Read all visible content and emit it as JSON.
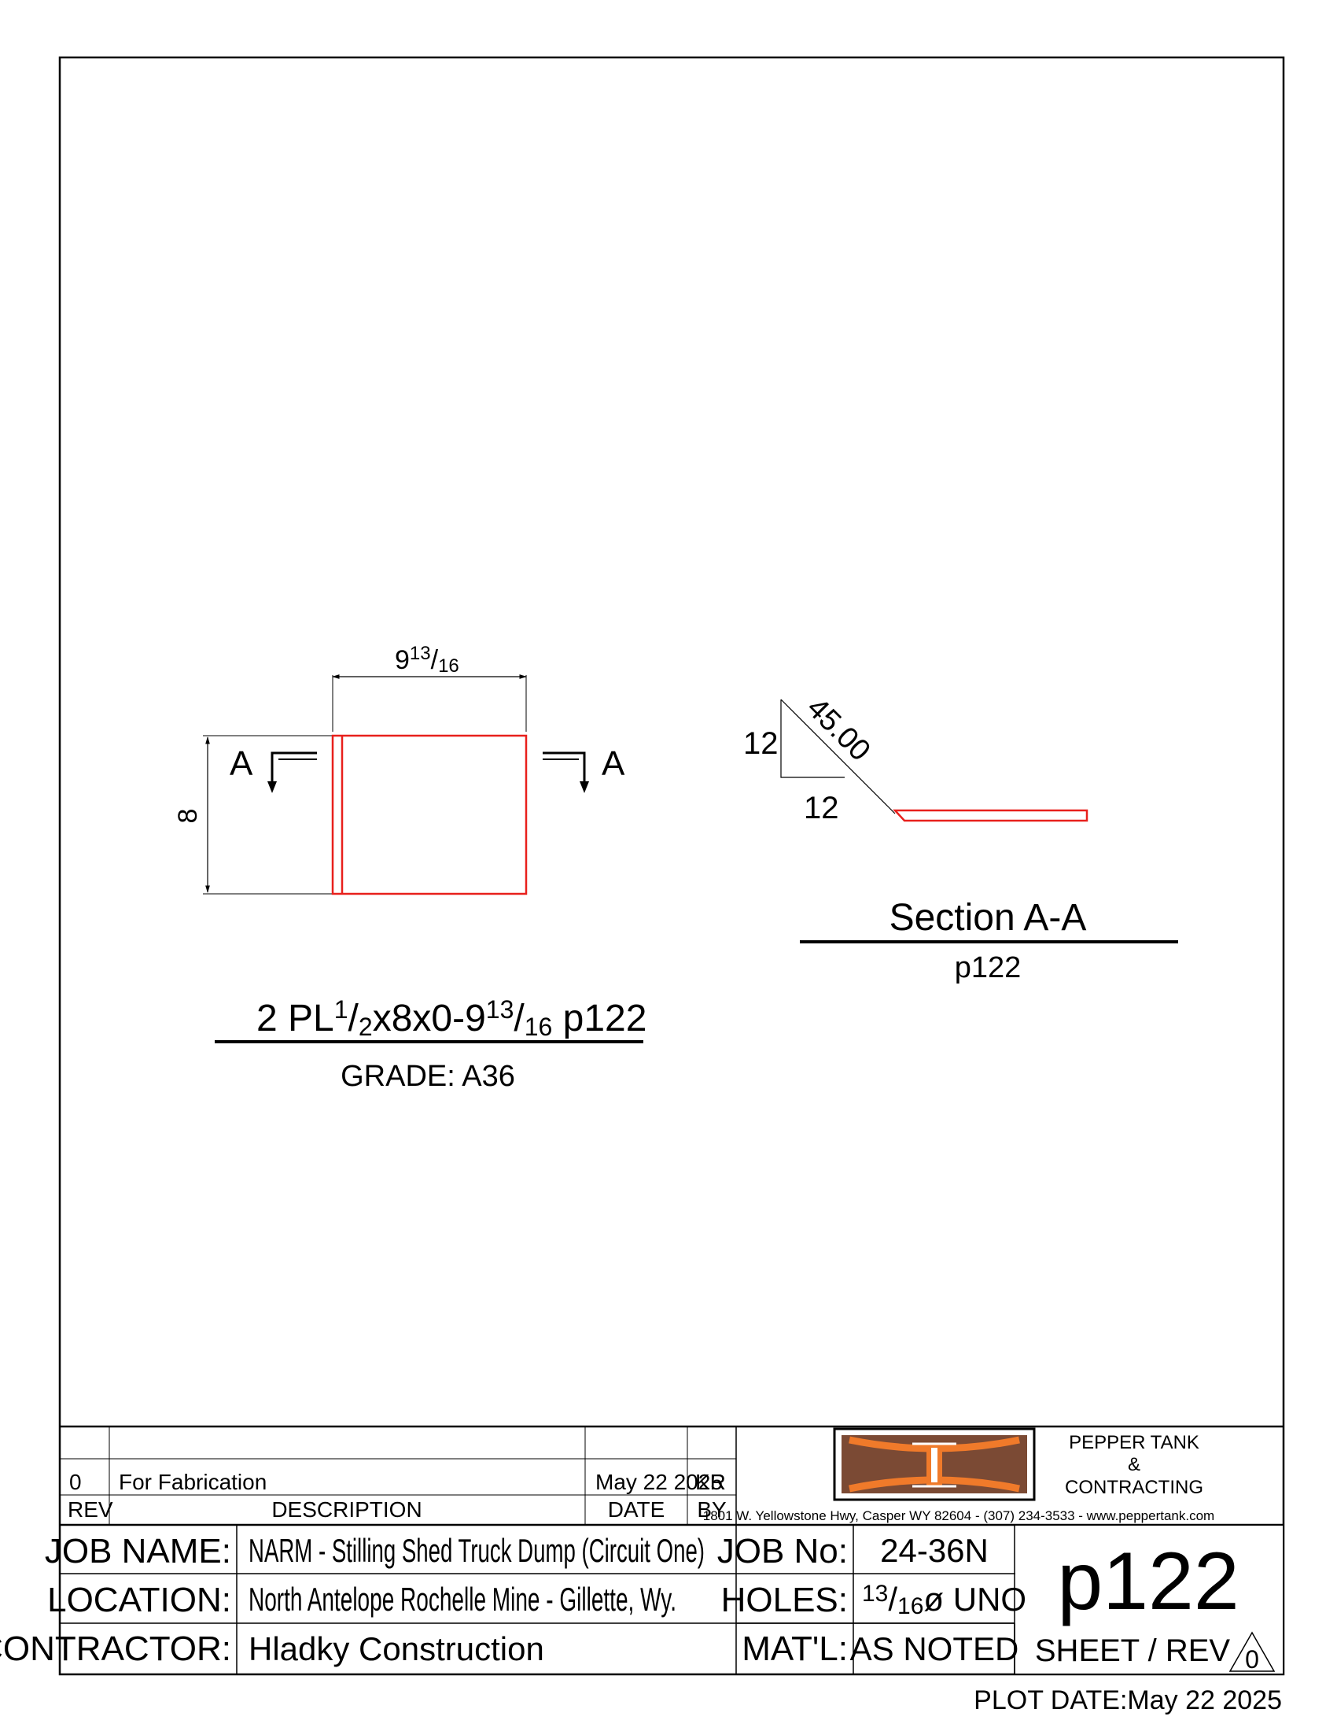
{
  "drawing": {
    "plate_width_dim": {
      "whole": "9",
      "num": "13",
      "den": "16"
    },
    "plate_height_dim": "8",
    "section_mark_left": "A",
    "section_mark_right": "A",
    "piece_title": {
      "pre": "2 PL",
      "t_num": "1",
      "t_den": "2",
      "mid": "x8x0-9",
      "l_num": "13",
      "l_den": "16",
      "post": " p122"
    },
    "grade": "GRADE: A36",
    "bevel_rise": "12",
    "bevel_run": "12",
    "bevel_angle": "45.00",
    "section_title": "Section A-A",
    "section_ref": "p122"
  },
  "title_block": {
    "rev_row": {
      "rev": "0",
      "description": "For Fabrication",
      "date": "May 22 2025",
      "by": "KR"
    },
    "headers": {
      "rev": "REV",
      "description": "DESCRIPTION",
      "date": "DATE",
      "by": "BY"
    },
    "company": {
      "line1": "PEPPER TANK",
      "line2": "&",
      "line3": "CONTRACTING",
      "address": "1801 W. Yellowstone Hwy, Casper WY 82604  -  (307) 234-3533  -  www.peppertank.com"
    },
    "job_name_label": "JOB NAME:",
    "job_name": "NARM - Stilling Shed Truck Dump (Circuit One)",
    "location_label": "LOCATION:",
    "location": "North Antelope Rochelle Mine - Gillette, Wy.",
    "contractor_label": "CONTRACTOR:",
    "contractor": "Hladky Construction",
    "job_no_label": "JOB No:",
    "job_no": "24-36N",
    "holes_label": "HOLES:",
    "holes": {
      "num": "13",
      "den": "16",
      "rest": "ø UNO"
    },
    "matl_label": "MAT'L:",
    "matl": "AS NOTED",
    "sheet": "p122",
    "sheet_rev_label": "SHEET / REV",
    "rev": "0",
    "plot_date": "PLOT DATE:May 22 2025"
  },
  "colors": {
    "part": "#e8201c",
    "logo_fill": "#7b4a34",
    "logo_accent": "#f07a2a"
  }
}
